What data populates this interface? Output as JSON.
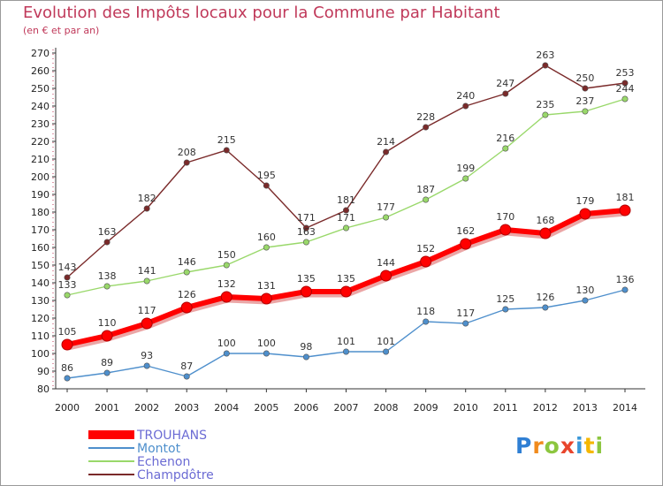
{
  "header": {
    "title": "Evolution des Impôts locaux pour la Commune par Habitant",
    "subtitle": "(en € et par an)"
  },
  "logo": {
    "letters": [
      "P",
      "r",
      "o",
      "x",
      "i",
      "t",
      "i"
    ],
    "colors": [
      "#2f7fd4",
      "#f08a1c",
      "#8cc63f",
      "#e8452c",
      "#3a98d8",
      "#f5b700",
      "#8cc63f"
    ]
  },
  "chart_data": {
    "type": "line",
    "title": "Evolution des Impôts locaux pour la Commune par Habitant",
    "subtitle": "(en € et par an)",
    "xlabel": "",
    "ylabel": "",
    "ylim": [
      80,
      270
    ],
    "ytick_step": 10,
    "grid": false,
    "legend_position": "bottom-left",
    "x": [
      "2000",
      "2001",
      "2002",
      "2003",
      "2004",
      "2005",
      "2006",
      "2007",
      "2008",
      "2009",
      "2010",
      "2011",
      "2012",
      "2013",
      "2014"
    ],
    "series": [
      {
        "name": "TROUHANS",
        "color": "#ff0000",
        "legend_color": "#6b6bd4",
        "emphasis": true,
        "values": [
          105,
          110,
          117,
          126,
          132,
          131,
          135,
          135,
          144,
          152,
          162,
          170,
          168,
          179,
          181
        ]
      },
      {
        "name": "Montot",
        "color": "#4e8fcc",
        "legend_color": "#4e8fcc",
        "values": [
          86,
          89,
          93,
          87,
          100,
          100,
          98,
          101,
          101,
          118,
          117,
          125,
          126,
          130,
          136
        ]
      },
      {
        "name": "Echenon",
        "color": "#99d86a",
        "legend_color": "#6b6bd4",
        "values": [
          133,
          138,
          141,
          146,
          150,
          160,
          163,
          171,
          177,
          187,
          199,
          216,
          235,
          237,
          244
        ]
      },
      {
        "name": "Champdôtre",
        "color": "#7a2a2a",
        "legend_color": "#6b6bd4",
        "values": [
          143,
          163,
          182,
          208,
          215,
          195,
          171,
          181,
          214,
          228,
          240,
          247,
          263,
          250,
          253
        ]
      }
    ]
  }
}
